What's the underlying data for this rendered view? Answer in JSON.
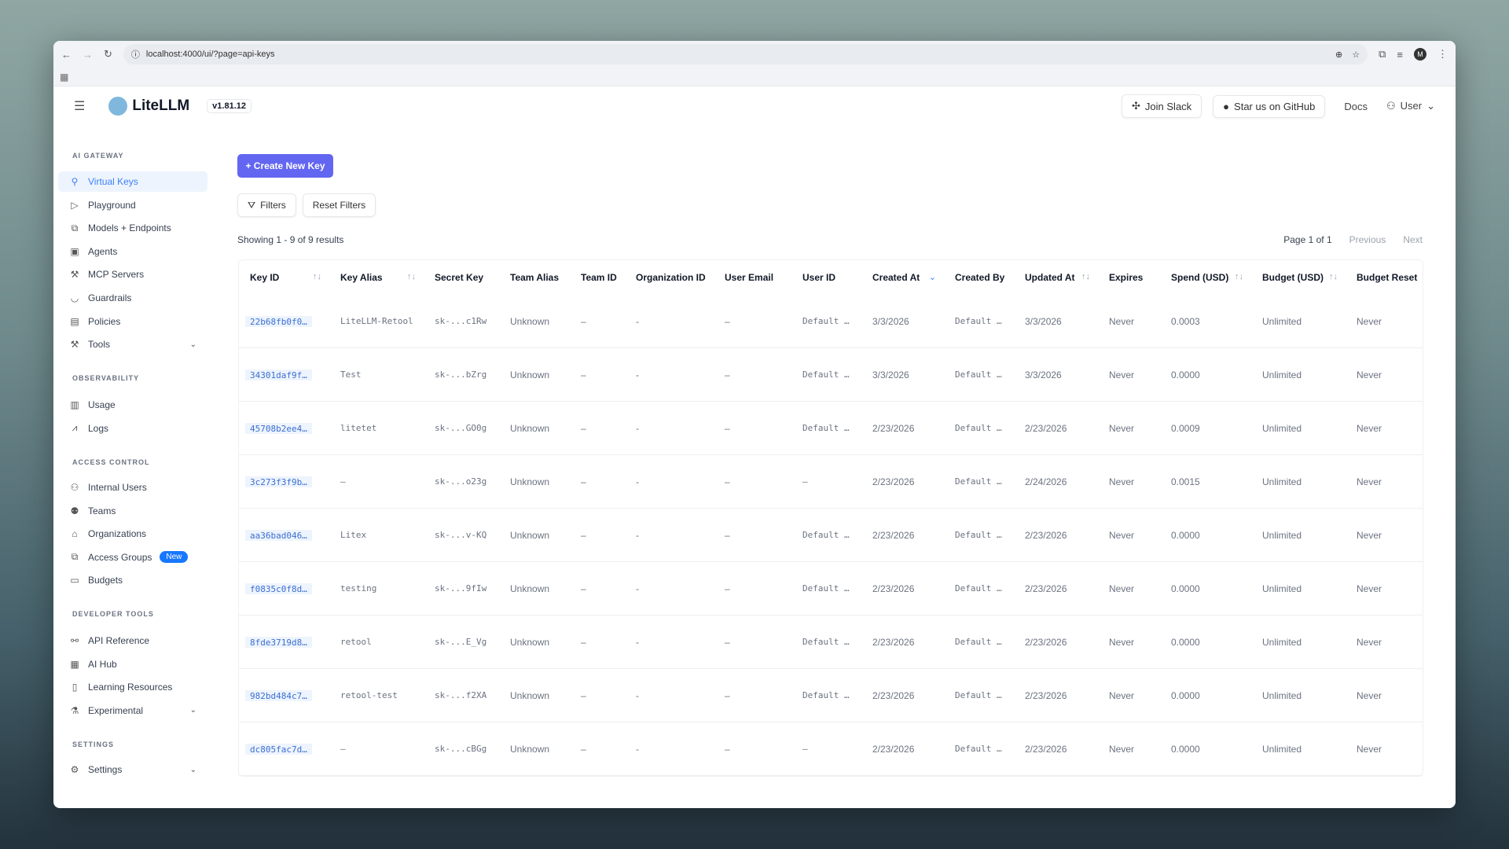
{
  "browser": {
    "url": "localhost:4000/ui/?page=api-keys",
    "profile_initial": "M"
  },
  "header": {
    "brand": "LiteLLM",
    "version": "v1.81.12",
    "join_slack": "Join Slack",
    "github": "Star us on GitHub",
    "docs": "Docs",
    "user": "User"
  },
  "sidebar": {
    "sections": [
      {
        "title": "AI GATEWAY",
        "items": [
          {
            "label": "Virtual Keys",
            "icon": "search-icon",
            "active": true
          },
          {
            "label": "Playground",
            "icon": "play-icon"
          },
          {
            "label": "Models + Endpoints",
            "icon": "blocks-icon"
          },
          {
            "label": "Agents",
            "icon": "robot-icon"
          },
          {
            "label": "MCP Servers",
            "icon": "tool-icon"
          },
          {
            "label": "Guardrails",
            "icon": "shield-icon"
          },
          {
            "label": "Policies",
            "icon": "policy-icon"
          },
          {
            "label": "Tools",
            "icon": "wrench-icon",
            "expandable": true
          }
        ]
      },
      {
        "title": "OBSERVABILITY",
        "items": [
          {
            "label": "Usage",
            "icon": "bar-chart-icon"
          },
          {
            "label": "Logs",
            "icon": "line-chart-icon"
          }
        ]
      },
      {
        "title": "ACCESS CONTROL",
        "items": [
          {
            "label": "Internal Users",
            "icon": "user-icon"
          },
          {
            "label": "Teams",
            "icon": "team-icon"
          },
          {
            "label": "Organizations",
            "icon": "bank-icon"
          },
          {
            "label": "Access Groups",
            "icon": "blocks-icon",
            "badge": "New"
          },
          {
            "label": "Budgets",
            "icon": "wallet-icon"
          }
        ]
      },
      {
        "title": "DEVELOPER TOOLS",
        "items": [
          {
            "label": "API Reference",
            "icon": "api-icon"
          },
          {
            "label": "AI Hub",
            "icon": "grid-icon"
          },
          {
            "label": "Learning Resources",
            "icon": "book-icon"
          },
          {
            "label": "Experimental",
            "icon": "flask-icon",
            "expandable": true
          }
        ]
      },
      {
        "title": "SETTINGS",
        "items": [
          {
            "label": "Settings",
            "icon": "gear-icon",
            "expandable": true
          }
        ]
      }
    ]
  },
  "toolbar": {
    "create": "+ Create New Key",
    "filters": "Filters",
    "reset": "Reset Filters"
  },
  "results": {
    "showing": "Showing 1 - 9 of 9 results",
    "page": "Page 1 of 1",
    "previous": "Previous",
    "next": "Next"
  },
  "colors": {
    "accent": "#6366f1",
    "link": "#3b6fd1",
    "badge": "#1677ff"
  },
  "table": {
    "columns": [
      {
        "label": "Key ID",
        "sort": true
      },
      {
        "label": "Key Alias",
        "sort": true
      },
      {
        "label": "Secret Key"
      },
      {
        "label": "Team Alias"
      },
      {
        "label": "Team ID"
      },
      {
        "label": "Organization ID"
      },
      {
        "label": "User Email"
      },
      {
        "label": "User ID"
      },
      {
        "label": "Created At",
        "sort": "desc"
      },
      {
        "label": "Created By"
      },
      {
        "label": "Updated At",
        "sort": true
      },
      {
        "label": "Expires"
      },
      {
        "label": "Spend (USD)",
        "sort": true
      },
      {
        "label": "Budget (USD)",
        "sort": true
      },
      {
        "label": "Budget Reset"
      }
    ],
    "rows": [
      [
        "22b68fb0f0…",
        "LiteLLM-Retool",
        "sk-...c1Rw",
        "Unknown",
        "–",
        "-",
        "–",
        "Default …",
        "3/3/2026",
        "Default …",
        "3/3/2026",
        "Never",
        "0.0003",
        "Unlimited",
        "Never"
      ],
      [
        "34301daf9f…",
        "Test",
        "sk-...bZrg",
        "Unknown",
        "–",
        "-",
        "–",
        "Default …",
        "3/3/2026",
        "Default …",
        "3/3/2026",
        "Never",
        "0.0000",
        "Unlimited",
        "Never"
      ],
      [
        "45708b2ee4…",
        "litetet",
        "sk-...GO0g",
        "Unknown",
        "–",
        "-",
        "–",
        "Default …",
        "2/23/2026",
        "Default …",
        "2/23/2026",
        "Never",
        "0.0009",
        "Unlimited",
        "Never"
      ],
      [
        "3c273f3f9b…",
        "–",
        "sk-...o23g",
        "Unknown",
        "–",
        "-",
        "–",
        "–",
        "2/23/2026",
        "Default …",
        "2/24/2026",
        "Never",
        "0.0015",
        "Unlimited",
        "Never"
      ],
      [
        "aa36bad046…",
        "Litex",
        "sk-...v-KQ",
        "Unknown",
        "–",
        "-",
        "–",
        "Default …",
        "2/23/2026",
        "Default …",
        "2/23/2026",
        "Never",
        "0.0000",
        "Unlimited",
        "Never"
      ],
      [
        "f0835c0f8d…",
        "testing",
        "sk-...9fIw",
        "Unknown",
        "–",
        "-",
        "–",
        "Default …",
        "2/23/2026",
        "Default …",
        "2/23/2026",
        "Never",
        "0.0000",
        "Unlimited",
        "Never"
      ],
      [
        "8fde3719d8…",
        "retool",
        "sk-...E_Vg",
        "Unknown",
        "–",
        "-",
        "–",
        "Default …",
        "2/23/2026",
        "Default …",
        "2/23/2026",
        "Never",
        "0.0000",
        "Unlimited",
        "Never"
      ],
      [
        "982bd484c7…",
        "retool-test",
        "sk-...f2XA",
        "Unknown",
        "–",
        "-",
        "–",
        "Default …",
        "2/23/2026",
        "Default …",
        "2/23/2026",
        "Never",
        "0.0000",
        "Unlimited",
        "Never"
      ],
      [
        "dc805fac7d…",
        "–",
        "sk-...cBGg",
        "Unknown",
        "–",
        "-",
        "–",
        "–",
        "2/23/2026",
        "Default …",
        "2/23/2026",
        "Never",
        "0.0000",
        "Unlimited",
        "Never"
      ]
    ]
  }
}
